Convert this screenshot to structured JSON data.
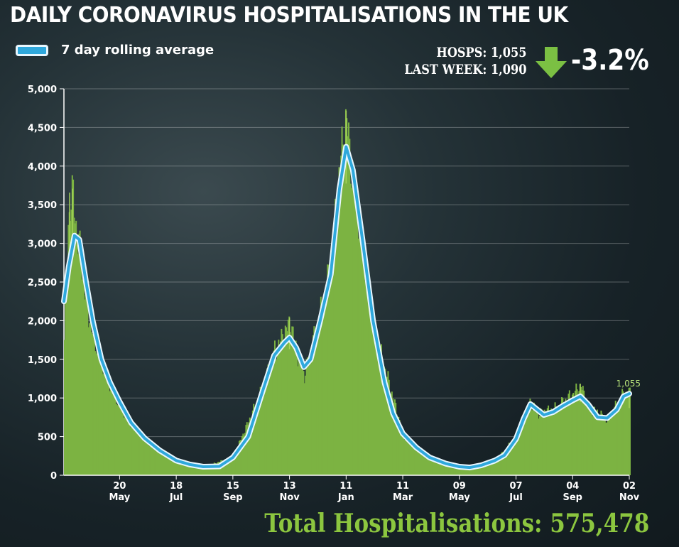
{
  "header": {
    "title": "DAILY CORONAVIRUS HOSPITALISATIONS IN THE UK"
  },
  "legend": {
    "label": "7 day rolling average"
  },
  "stats": {
    "hosps": "HOSPS: 1,055",
    "last_week": "LAST WEEK: 1,090",
    "change": "-3.2%",
    "arrow_icon": "down-arrow-icon"
  },
  "footer": {
    "total": "Total Hospitalisations: 575,478"
  },
  "colors": {
    "bars": "#7cb342",
    "bar_peaks": "#a6d45a",
    "line_core": "#2fa8dc",
    "line_outline": "#e8f7ff",
    "arrow": "#7bc043",
    "total_text": "#8cc63f"
  },
  "chart_data": {
    "type": "area",
    "title": "DAILY CORONAVIRUS HOSPITALISATIONS IN THE UK",
    "xlabel": "",
    "ylabel": "",
    "ylim": [
      0,
      5000
    ],
    "yticks": [
      0,
      500,
      1000,
      1500,
      2000,
      2500,
      3000,
      3500,
      4000,
      4500,
      5000
    ],
    "ytick_labels": [
      "0",
      "500",
      "1,000",
      "1,500",
      "2,000",
      "2,500",
      "3,000",
      "3,500",
      "4,000",
      "4,500",
      "5,000"
    ],
    "xlim": [
      "2020-03-23",
      "2021-11-02"
    ],
    "xticks": [
      {
        "date": "2020-05-20",
        "day": "20",
        "month": "May"
      },
      {
        "date": "2020-07-18",
        "day": "18",
        "month": "Jul"
      },
      {
        "date": "2020-09-15",
        "day": "15",
        "month": "Sep"
      },
      {
        "date": "2020-11-13",
        "day": "13",
        "month": "Nov"
      },
      {
        "date": "2021-01-11",
        "day": "11",
        "month": "Jan"
      },
      {
        "date": "2021-03-11",
        "day": "11",
        "month": "Mar"
      },
      {
        "date": "2021-05-09",
        "day": "09",
        "month": "May"
      },
      {
        "date": "2021-07-07",
        "day": "07",
        "month": "Jul"
      },
      {
        "date": "2021-09-04",
        "day": "04",
        "month": "Sep"
      },
      {
        "date": "2021-11-02",
        "day": "02",
        "month": "Nov"
      }
    ],
    "grid": true,
    "legend_position": "top-left",
    "annotation": {
      "text": "1,055",
      "date": "2021-11-02",
      "value": 1055
    },
    "series": [
      {
        "name": "7 day rolling average",
        "kind": "line",
        "points": [
          [
            "2020-03-23",
            2250
          ],
          [
            "2020-03-28",
            2700
          ],
          [
            "2020-04-03",
            3100
          ],
          [
            "2020-04-08",
            3050
          ],
          [
            "2020-04-15",
            2500
          ],
          [
            "2020-04-22",
            2000
          ],
          [
            "2020-05-01",
            1500
          ],
          [
            "2020-05-10",
            1200
          ],
          [
            "2020-05-20",
            950
          ],
          [
            "2020-06-01",
            680
          ],
          [
            "2020-06-15",
            480
          ],
          [
            "2020-07-01",
            320
          ],
          [
            "2020-07-18",
            190
          ],
          [
            "2020-08-01",
            140
          ],
          [
            "2020-08-15",
            110
          ],
          [
            "2020-09-01",
            115
          ],
          [
            "2020-09-15",
            230
          ],
          [
            "2020-10-01",
            500
          ],
          [
            "2020-10-15",
            1050
          ],
          [
            "2020-10-28",
            1550
          ],
          [
            "2020-11-08",
            1720
          ],
          [
            "2020-11-13",
            1780
          ],
          [
            "2020-11-20",
            1650
          ],
          [
            "2020-11-28",
            1400
          ],
          [
            "2020-12-05",
            1500
          ],
          [
            "2020-12-15",
            2000
          ],
          [
            "2020-12-26",
            2600
          ],
          [
            "2021-01-04",
            3700
          ],
          [
            "2021-01-11",
            4250
          ],
          [
            "2021-01-18",
            3950
          ],
          [
            "2021-01-28",
            3050
          ],
          [
            "2021-02-08",
            2000
          ],
          [
            "2021-02-20",
            1200
          ],
          [
            "2021-03-01",
            800
          ],
          [
            "2021-03-11",
            540
          ],
          [
            "2021-03-25",
            360
          ],
          [
            "2021-04-08",
            230
          ],
          [
            "2021-04-25",
            150
          ],
          [
            "2021-05-09",
            110
          ],
          [
            "2021-05-20",
            100
          ],
          [
            "2021-06-01",
            130
          ],
          [
            "2021-06-15",
            190
          ],
          [
            "2021-06-25",
            260
          ],
          [
            "2021-07-07",
            470
          ],
          [
            "2021-07-15",
            730
          ],
          [
            "2021-07-22",
            920
          ],
          [
            "2021-07-28",
            860
          ],
          [
            "2021-08-05",
            780
          ],
          [
            "2021-08-15",
            820
          ],
          [
            "2021-08-25",
            900
          ],
          [
            "2021-09-04",
            970
          ],
          [
            "2021-09-12",
            1020
          ],
          [
            "2021-09-20",
            920
          ],
          [
            "2021-09-30",
            750
          ],
          [
            "2021-10-10",
            740
          ],
          [
            "2021-10-20",
            850
          ],
          [
            "2021-10-27",
            1020
          ],
          [
            "2021-11-02",
            1055
          ]
        ]
      },
      {
        "name": "",
        "kind": "bars",
        "points": [
          [
            "2020-03-23",
            1750
          ],
          [
            "2020-03-25",
            2350
          ],
          [
            "2020-03-27",
            3200
          ],
          [
            "2020-03-29",
            3550
          ],
          [
            "2020-04-01",
            3600
          ],
          [
            "2020-04-03",
            3350
          ],
          [
            "2020-04-05",
            3100
          ],
          [
            "2020-04-08",
            2900
          ],
          [
            "2020-04-12",
            2500
          ],
          [
            "2020-04-15",
            2200
          ],
          [
            "2020-04-20",
            1900
          ],
          [
            "2020-04-27",
            1600
          ],
          [
            "2020-05-05",
            1350
          ],
          [
            "2020-05-12",
            1100
          ],
          [
            "2020-05-20",
            900
          ],
          [
            "2020-06-01",
            650
          ],
          [
            "2020-06-15",
            450
          ],
          [
            "2020-07-01",
            300
          ],
          [
            "2020-07-18",
            180
          ],
          [
            "2020-08-15",
            100
          ],
          [
            "2020-09-15",
            240
          ],
          [
            "2020-10-15",
            1100
          ],
          [
            "2020-10-28",
            1600
          ],
          [
            "2020-11-08",
            1850
          ],
          [
            "2020-11-13",
            1980
          ],
          [
            "2020-11-20",
            1600
          ],
          [
            "2020-11-28",
            1300
          ],
          [
            "2020-12-15",
            2100
          ],
          [
            "2020-12-26",
            2750
          ],
          [
            "2021-01-04",
            4000
          ],
          [
            "2021-01-08",
            4350
          ],
          [
            "2021-01-11",
            4580
          ],
          [
            "2021-01-14",
            4200
          ],
          [
            "2021-01-18",
            3800
          ],
          [
            "2021-01-28",
            2950
          ],
          [
            "2021-02-08",
            1900
          ],
          [
            "2021-03-11",
            520
          ],
          [
            "2021-04-08",
            220
          ],
          [
            "2021-05-09",
            100
          ],
          [
            "2021-06-15",
            180
          ],
          [
            "2021-07-07",
            500
          ],
          [
            "2021-07-22",
            960
          ],
          [
            "2021-07-28",
            800
          ],
          [
            "2021-08-15",
            850
          ],
          [
            "2021-09-04",
            1050
          ],
          [
            "2021-09-12",
            1150
          ],
          [
            "2021-09-20",
            880
          ],
          [
            "2021-10-10",
            720
          ],
          [
            "2021-10-27",
            1060
          ],
          [
            "2021-11-02",
            1055
          ]
        ]
      }
    ]
  }
}
